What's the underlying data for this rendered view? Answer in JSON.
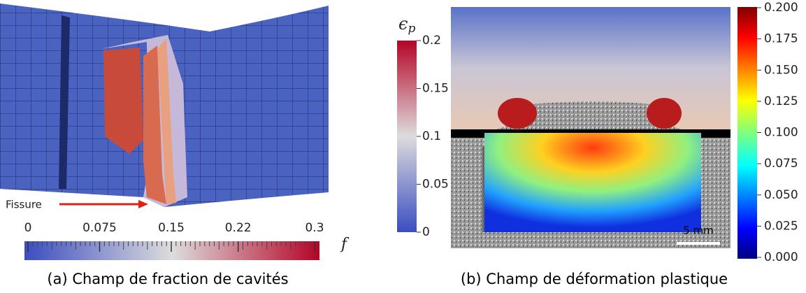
{
  "panel_a": {
    "caption": "(a) Champ de fraction de cavités",
    "annotation": "Fissure",
    "colorbar": {
      "label": "f",
      "lim": [
        0,
        0.3
      ],
      "ticks": [
        0,
        0.075,
        0.15,
        0.22,
        0.3
      ]
    }
  },
  "panel_b": {
    "caption": "(b) Champ de déformation plastique",
    "scale_bar": "5 mm",
    "colorbar_left": {
      "symbol": "ϵ",
      "subscript": "p",
      "lim": [
        0,
        0.2
      ],
      "ticks": [
        0,
        0.05,
        0.1,
        0.15,
        0.2
      ]
    },
    "colorbar_right": {
      "lim": [
        0,
        0.2
      ],
      "ticks": [
        {
          "value": 0,
          "label": "0.000"
        },
        {
          "value": 0.025,
          "label": "0.025"
        },
        {
          "value": 0.05,
          "label": "0.050"
        },
        {
          "value": 0.075,
          "label": "0.075"
        },
        {
          "value": 0.1,
          "label": "0.100"
        },
        {
          "value": 0.125,
          "label": "0.125"
        },
        {
          "value": 0.15,
          "label": "0.150"
        },
        {
          "value": 0.175,
          "label": "0.175"
        },
        {
          "value": 0.2,
          "label": "0.200"
        }
      ]
    }
  }
}
